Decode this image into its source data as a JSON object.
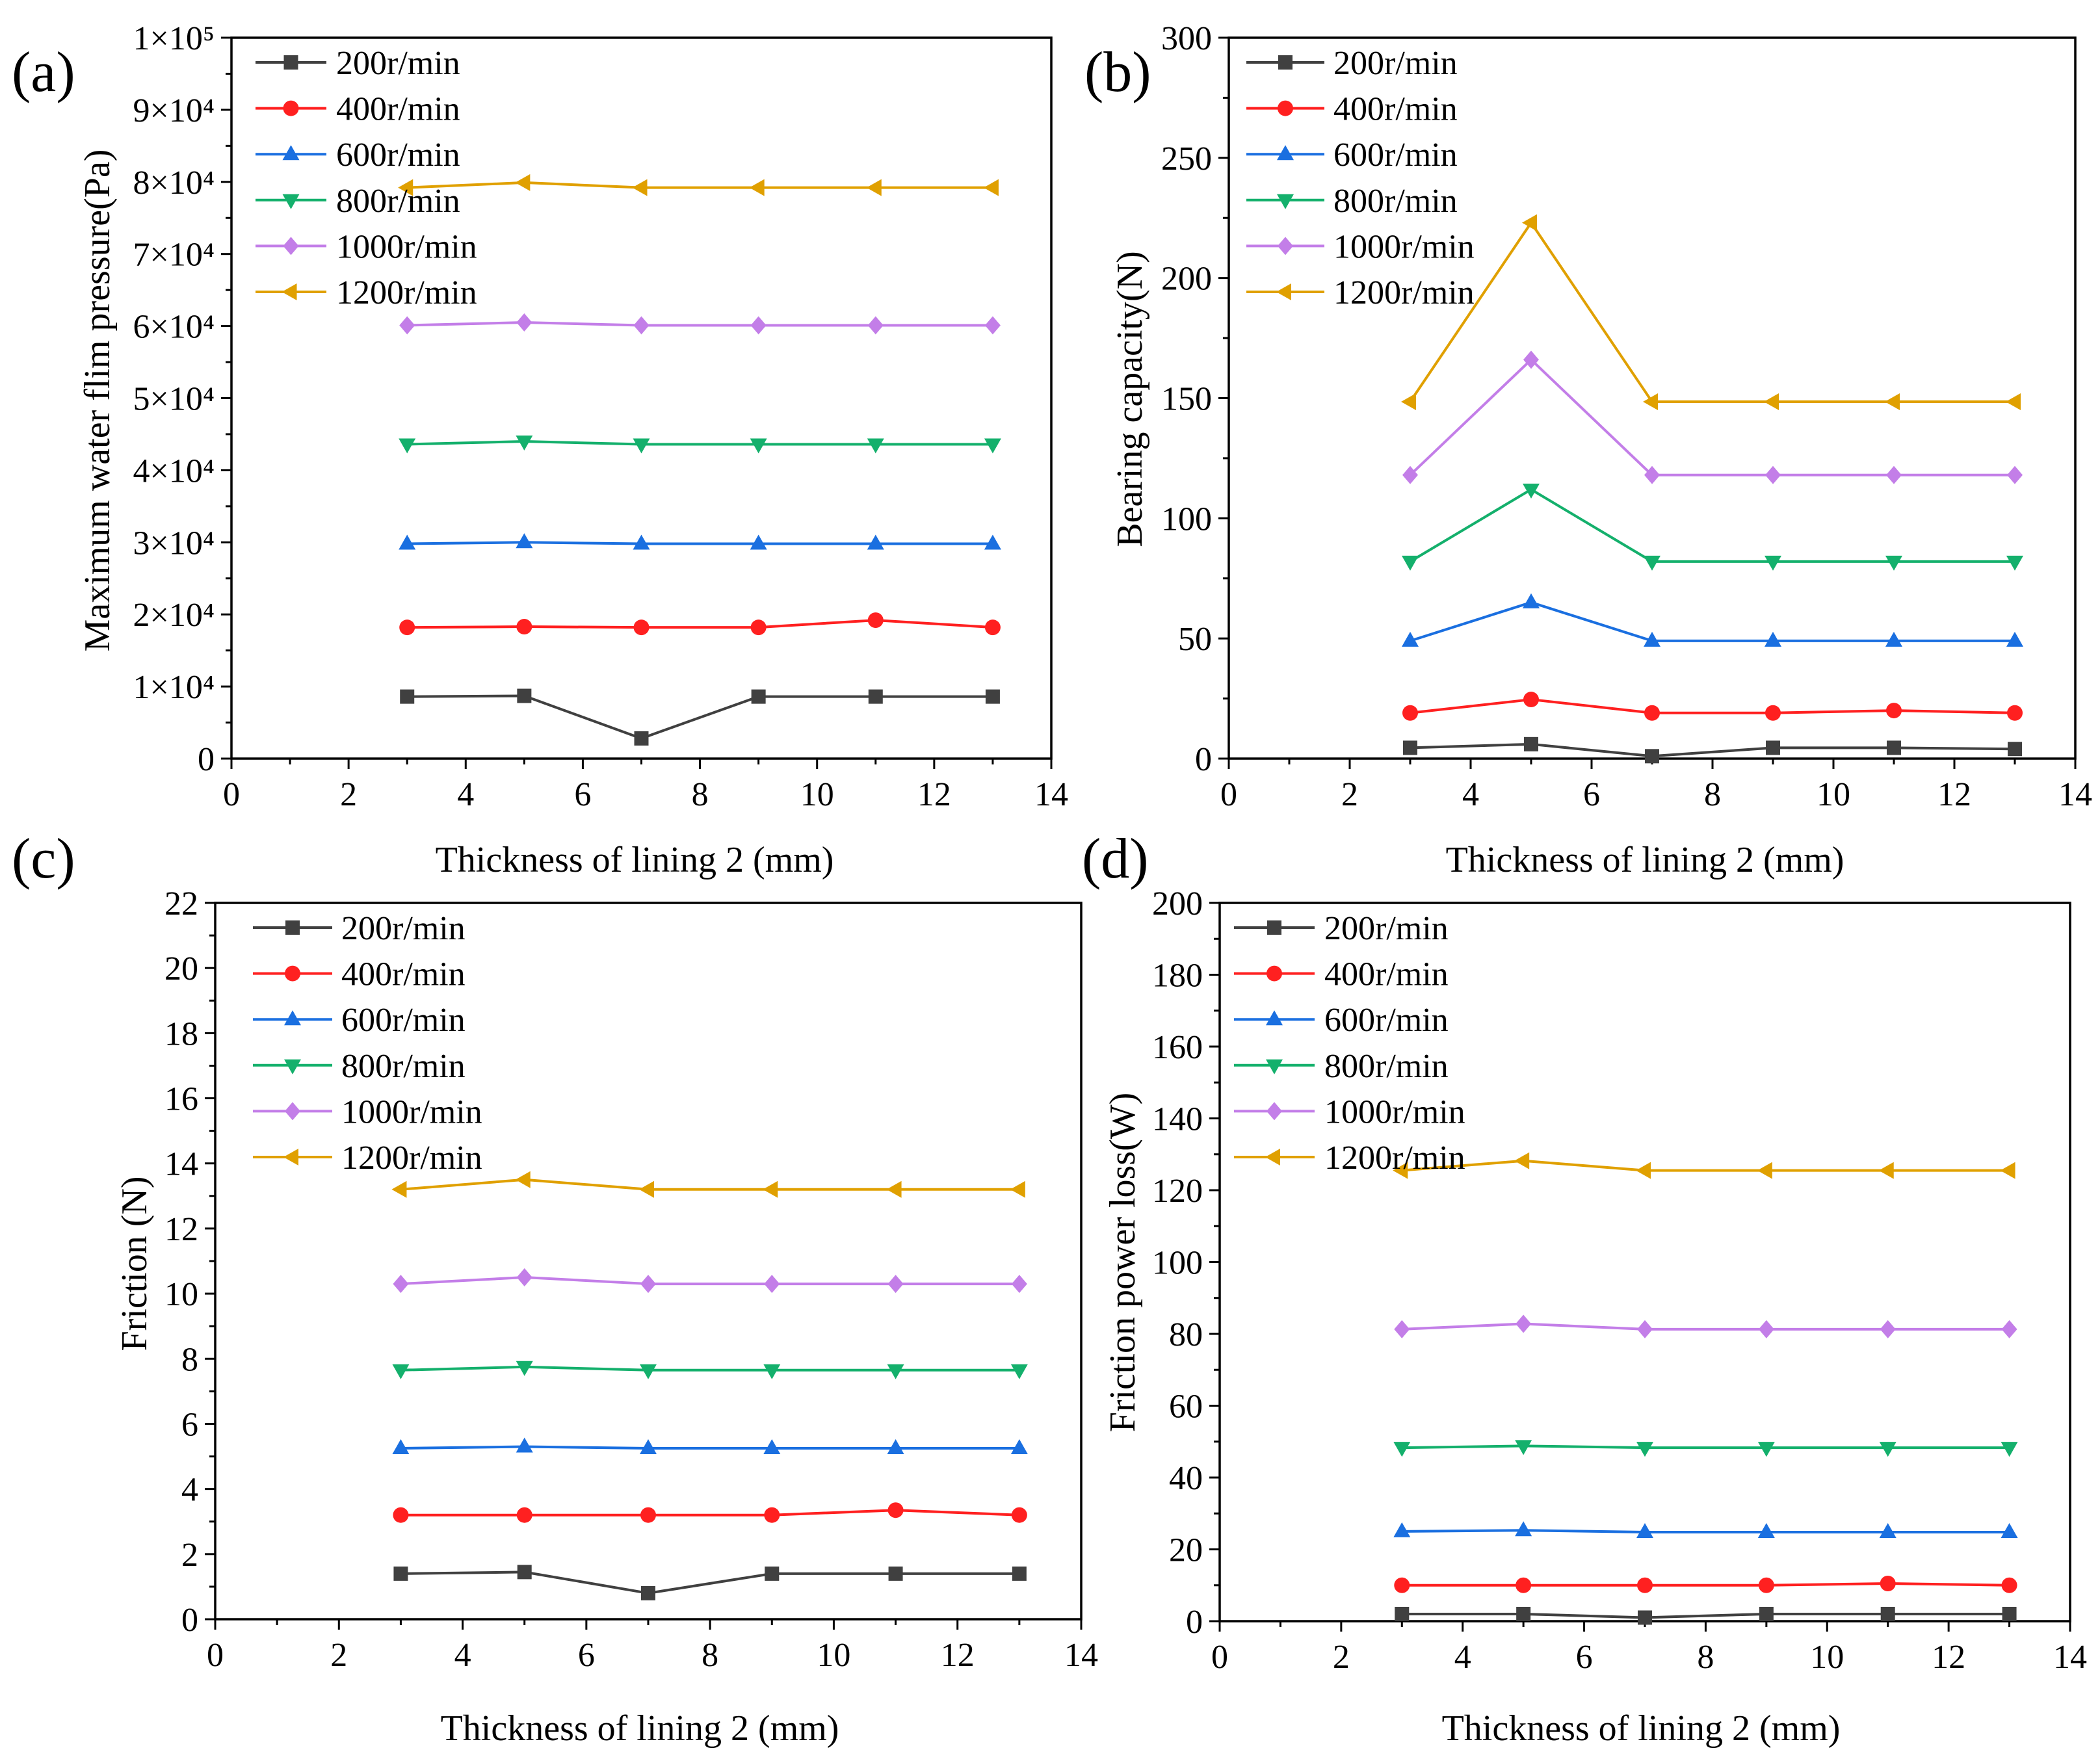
{
  "chart_data": [
    {
      "panel_label": "(a)",
      "type": "line",
      "xlabel": "Thickness of lining 2 (mm)",
      "ylabel": "Maximum water flim pressure(Pa)",
      "xlim": [
        0,
        14
      ],
      "ylim": [
        0,
        100000
      ],
      "xticks": [
        0,
        2,
        4,
        6,
        8,
        10,
        12,
        14
      ],
      "xtick_labels": [
        "0",
        "2",
        "4",
        "6",
        "8",
        "10",
        "12",
        "14"
      ],
      "xminor": 1,
      "yticks": [
        0,
        10000,
        20000,
        30000,
        40000,
        50000,
        60000,
        70000,
        80000,
        90000,
        100000
      ],
      "ytick_labels": [
        "0",
        "1×10⁴",
        "2×10⁴",
        "3×10⁴",
        "4×10⁴",
        "5×10⁴",
        "6×10⁴",
        "7×10⁴",
        "8×10⁴",
        "9×10⁴",
        "1×10⁵"
      ],
      "yminor": 5000,
      "legend": "top-left",
      "x": [
        3,
        5,
        7,
        9,
        11,
        13
      ],
      "series": [
        {
          "name": "200r/min",
          "color": "#404040",
          "marker": "square",
          "values": [
            8600,
            8700,
            2800,
            8600,
            8600,
            8600
          ]
        },
        {
          "name": "400r/min",
          "color": "#ff2020",
          "marker": "circle",
          "values": [
            18200,
            18300,
            18200,
            18200,
            19200,
            18200
          ]
        },
        {
          "name": "600r/min",
          "color": "#1a6fe0",
          "marker": "triangle-up",
          "values": [
            29800,
            30000,
            29800,
            29800,
            29800,
            29800
          ]
        },
        {
          "name": "800r/min",
          "color": "#14b06c",
          "marker": "triangle-down",
          "values": [
            43600,
            44000,
            43600,
            43600,
            43600,
            43600
          ]
        },
        {
          "name": "1000r/min",
          "color": "#c37ee8",
          "marker": "diamond",
          "values": [
            60100,
            60500,
            60100,
            60100,
            60100,
            60100
          ]
        },
        {
          "name": "1200r/min",
          "color": "#e0a000",
          "marker": "triangle-left",
          "values": [
            79200,
            79900,
            79200,
            79200,
            79200,
            79200
          ]
        }
      ]
    },
    {
      "panel_label": "(b)",
      "type": "line",
      "xlabel": "Thickness of lining 2 (mm)",
      "ylabel": "Bearing capacity(N)",
      "xlim": [
        0,
        14
      ],
      "ylim": [
        0,
        300
      ],
      "xticks": [
        0,
        2,
        4,
        6,
        8,
        10,
        12,
        14
      ],
      "xtick_labels": [
        "0",
        "2",
        "4",
        "6",
        "8",
        "10",
        "12",
        "14"
      ],
      "xminor": 1,
      "yticks": [
        0,
        50,
        100,
        150,
        200,
        250,
        300
      ],
      "ytick_labels": [
        "0",
        "50",
        "100",
        "150",
        "200",
        "250",
        "300"
      ],
      "yminor": 25,
      "legend": "top-left",
      "x": [
        3,
        5,
        7,
        9,
        11,
        13
      ],
      "series": [
        {
          "name": "200r/min",
          "color": "#404040",
          "marker": "square",
          "values": [
            4.5,
            6,
            1,
            4.5,
            4.5,
            4
          ]
        },
        {
          "name": "400r/min",
          "color": "#ff2020",
          "marker": "circle",
          "values": [
            19,
            24.6,
            19,
            19,
            20,
            19
          ]
        },
        {
          "name": "600r/min",
          "color": "#1a6fe0",
          "marker": "triangle-up",
          "values": [
            49,
            65,
            49,
            49,
            49,
            49
          ]
        },
        {
          "name": "800r/min",
          "color": "#14b06c",
          "marker": "triangle-down",
          "values": [
            82,
            112,
            82,
            82,
            82,
            82
          ]
        },
        {
          "name": "1000r/min",
          "color": "#c37ee8",
          "marker": "diamond",
          "values": [
            118,
            166,
            118,
            118,
            118,
            118
          ]
        },
        {
          "name": "1200r/min",
          "color": "#e0a000",
          "marker": "triangle-left",
          "values": [
            148.5,
            223,
            148.5,
            148.5,
            148.5,
            148.5
          ]
        }
      ]
    },
    {
      "panel_label": "(c)",
      "type": "line",
      "xlabel": "Thickness of lining 2 (mm)",
      "ylabel": "Friction (N)",
      "xlim": [
        0,
        14
      ],
      "ylim": [
        0,
        22
      ],
      "xticks": [
        0,
        2,
        4,
        6,
        8,
        10,
        12,
        14
      ],
      "xtick_labels": [
        "0",
        "2",
        "4",
        "6",
        "8",
        "10",
        "12",
        "14"
      ],
      "xminor": 1,
      "yticks": [
        0,
        2,
        4,
        6,
        8,
        10,
        12,
        14,
        16,
        18,
        20,
        22
      ],
      "ytick_labels": [
        "0",
        "2",
        "4",
        "6",
        "8",
        "10",
        "12",
        "14",
        "16",
        "18",
        "20",
        "22"
      ],
      "yminor": 1,
      "legend": "top-left",
      "x": [
        3,
        5,
        7,
        9,
        11,
        13
      ],
      "series": [
        {
          "name": "200r/min",
          "color": "#404040",
          "marker": "square",
          "values": [
            1.4,
            1.45,
            0.8,
            1.4,
            1.4,
            1.4
          ]
        },
        {
          "name": "400r/min",
          "color": "#ff2020",
          "marker": "circle",
          "values": [
            3.2,
            3.2,
            3.2,
            3.2,
            3.35,
            3.2
          ]
        },
        {
          "name": "600r/min",
          "color": "#1a6fe0",
          "marker": "triangle-up",
          "values": [
            5.25,
            5.3,
            5.25,
            5.25,
            5.25,
            5.25
          ]
        },
        {
          "name": "800r/min",
          "color": "#14b06c",
          "marker": "triangle-down",
          "values": [
            7.65,
            7.75,
            7.65,
            7.65,
            7.65,
            7.65
          ]
        },
        {
          "name": "1000r/min",
          "color": "#c37ee8",
          "marker": "diamond",
          "values": [
            10.3,
            10.5,
            10.3,
            10.3,
            10.3,
            10.3
          ]
        },
        {
          "name": "1200r/min",
          "color": "#e0a000",
          "marker": "triangle-left",
          "values": [
            13.2,
            13.5,
            13.2,
            13.2,
            13.2,
            13.2
          ]
        }
      ]
    },
    {
      "panel_label": "(d)",
      "type": "line",
      "xlabel": "Thickness of lining 2 (mm)",
      "ylabel": "Friction power loss(W)",
      "xlim": [
        0,
        14
      ],
      "ylim": [
        0,
        200
      ],
      "xticks": [
        0,
        2,
        4,
        6,
        8,
        10,
        12,
        14
      ],
      "xtick_labels": [
        "0",
        "2",
        "4",
        "6",
        "8",
        "10",
        "12",
        "14"
      ],
      "xminor": 1,
      "yticks": [
        0,
        20,
        40,
        60,
        80,
        100,
        120,
        140,
        160,
        180,
        200
      ],
      "ytick_labels": [
        "0",
        "20",
        "40",
        "60",
        "80",
        "100",
        "120",
        "140",
        "160",
        "180",
        "200"
      ],
      "yminor": 10,
      "legend": "top-left",
      "x": [
        3,
        5,
        7,
        9,
        11,
        13
      ],
      "series": [
        {
          "name": "200r/min",
          "color": "#404040",
          "marker": "square",
          "values": [
            2,
            2,
            1,
            2,
            2,
            2
          ]
        },
        {
          "name": "400r/min",
          "color": "#ff2020",
          "marker": "circle",
          "values": [
            10,
            10,
            10,
            10,
            10.5,
            10
          ]
        },
        {
          "name": "600r/min",
          "color": "#1a6fe0",
          "marker": "triangle-up",
          "values": [
            25,
            25.3,
            24.8,
            24.8,
            24.8,
            24.8
          ]
        },
        {
          "name": "800r/min",
          "color": "#14b06c",
          "marker": "triangle-down",
          "values": [
            48.3,
            48.8,
            48.3,
            48.3,
            48.3,
            48.3
          ]
        },
        {
          "name": "1000r/min",
          "color": "#c37ee8",
          "marker": "diamond",
          "values": [
            81.3,
            82.8,
            81.3,
            81.3,
            81.3,
            81.3
          ]
        },
        {
          "name": "1200r/min",
          "color": "#e0a000",
          "marker": "triangle-left",
          "values": [
            125.5,
            128.2,
            125.5,
            125.5,
            125.5,
            125.5
          ]
        }
      ]
    }
  ]
}
